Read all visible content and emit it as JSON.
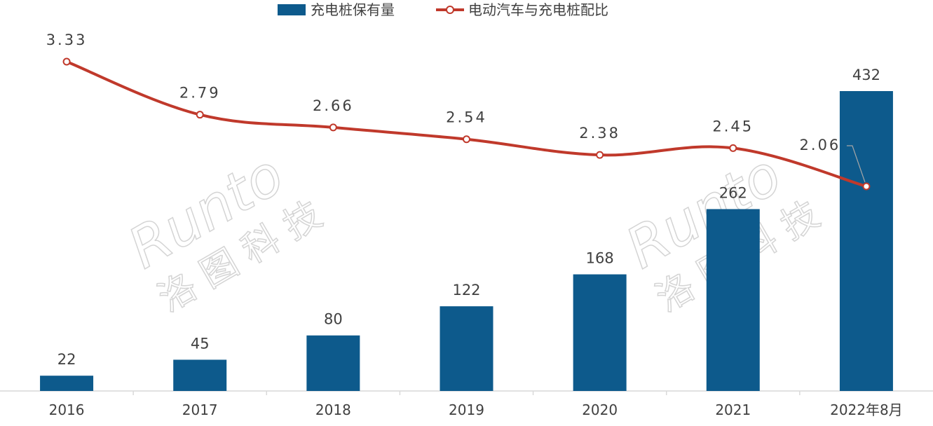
{
  "legend": {
    "bar_series_label": "充电桩保有量",
    "line_series_label": "电动汽车与充电桩配比"
  },
  "watermarks": [
    {
      "logo": "Runto",
      "sub": "洛 图 科 技"
    },
    {
      "logo": "Runto",
      "sub": "洛 图 科 技"
    }
  ],
  "colors": {
    "bar": "#0d5a8c",
    "line": "#c0392b",
    "axis": "#d9d9d9",
    "text": "#404040"
  },
  "chart_data": {
    "type": "bar",
    "categories": [
      "2016",
      "2017",
      "2018",
      "2019",
      "2020",
      "2021",
      "2022年8月"
    ],
    "series": [
      {
        "name": "充电桩保有量",
        "type": "bar",
        "values": [
          22,
          45,
          80,
          122,
          168,
          262,
          432
        ],
        "labels": [
          "22",
          "45",
          "80",
          "122",
          "168",
          "262",
          "432"
        ]
      },
      {
        "name": "电动汽车与充电桩配比",
        "type": "line",
        "values": [
          3.33,
          2.79,
          2.66,
          2.54,
          2.38,
          2.45,
          2.06
        ],
        "labels": [
          "3.33",
          "2.79",
          "2.66",
          "2.54",
          "2.38",
          "2.45",
          "2.06"
        ]
      }
    ],
    "legend_position": "top-center",
    "grid": false
  }
}
